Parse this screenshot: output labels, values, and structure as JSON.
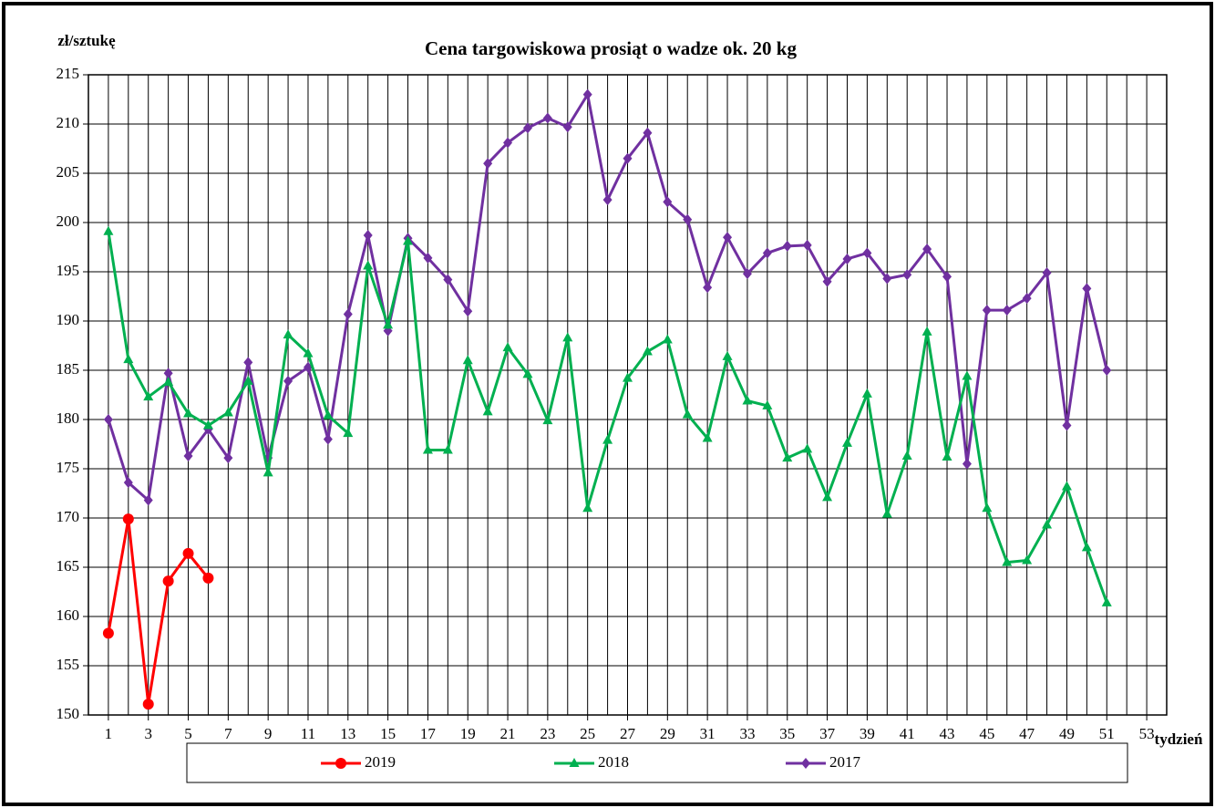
{
  "chart_data": {
    "type": "line",
    "title": "Cena targowiskowa prosiąt o wadze ok. 20 kg",
    "y_label": "zł/sztukę",
    "x_label": "tydzień",
    "x": [
      1,
      2,
      3,
      4,
      5,
      6,
      7,
      8,
      9,
      10,
      11,
      12,
      13,
      14,
      15,
      16,
      17,
      18,
      19,
      20,
      21,
      22,
      23,
      24,
      25,
      26,
      27,
      28,
      29,
      30,
      31,
      32,
      33,
      34,
      35,
      36,
      37,
      38,
      39,
      40,
      41,
      42,
      43,
      44,
      45,
      46,
      47,
      48,
      49,
      50,
      51
    ],
    "xlim": [
      0,
      54
    ],
    "xticks": [
      1,
      3,
      5,
      7,
      9,
      11,
      13,
      15,
      17,
      19,
      21,
      23,
      25,
      27,
      29,
      31,
      33,
      35,
      37,
      39,
      41,
      43,
      45,
      47,
      49,
      51,
      53
    ],
    "ylim": [
      150,
      215
    ],
    "yticks": [
      150,
      155,
      160,
      165,
      170,
      175,
      180,
      185,
      190,
      195,
      200,
      205,
      210,
      215
    ],
    "grid": true,
    "legend": "bottom",
    "series": [
      {
        "name": "2019",
        "color": "#ff0000",
        "marker": "circle",
        "values": [
          158.3,
          169.9,
          151.1,
          163.6,
          166.4,
          163.9,
          null,
          null,
          null,
          null,
          null,
          null,
          null,
          null,
          null,
          null,
          null,
          null,
          null,
          null,
          null,
          null,
          null,
          null,
          null,
          null,
          null,
          null,
          null,
          null,
          null,
          null,
          null,
          null,
          null,
          null,
          null,
          null,
          null,
          null,
          null,
          null,
          null,
          null,
          null,
          null,
          null,
          null,
          null,
          null,
          null
        ]
      },
      {
        "name": "2018",
        "color": "#00b050",
        "marker": "triangle",
        "values": [
          199.1,
          186.1,
          182.3,
          183.8,
          180.6,
          179.4,
          180.7,
          183.9,
          174.6,
          188.6,
          186.7,
          180.4,
          178.6,
          195.6,
          189.6,
          198.1,
          176.9,
          176.9,
          186.0,
          180.8,
          187.3,
          184.6,
          179.9,
          188.3,
          171.0,
          177.9,
          184.2,
          186.9,
          188.1,
          180.5,
          178.1,
          186.4,
          181.9,
          181.4,
          176.1,
          177.0,
          172.1,
          177.6,
          182.6,
          170.4,
          176.3,
          188.9,
          176.2,
          184.4,
          171.0,
          165.5,
          165.7,
          169.3,
          173.2,
          167.0,
          161.4
        ]
      },
      {
        "name": "2017",
        "color": "#7030a0",
        "marker": "diamond",
        "values": [
          180.0,
          173.6,
          171.8,
          184.7,
          176.3,
          179.0,
          176.1,
          185.8,
          176.1,
          183.9,
          185.3,
          178.0,
          190.7,
          198.7,
          189.0,
          198.4,
          196.4,
          194.2,
          191.0,
          206.0,
          208.1,
          209.6,
          210.6,
          209.7,
          213.0,
          202.3,
          206.5,
          209.1,
          202.1,
          200.3,
          193.4,
          198.5,
          194.8,
          196.9,
          197.6,
          197.7,
          194.0,
          196.3,
          196.9,
          194.3,
          194.7,
          197.3,
          194.5,
          175.5,
          191.1,
          191.1,
          192.3,
          194.9,
          179.4,
          193.3,
          185.0
        ]
      }
    ]
  }
}
